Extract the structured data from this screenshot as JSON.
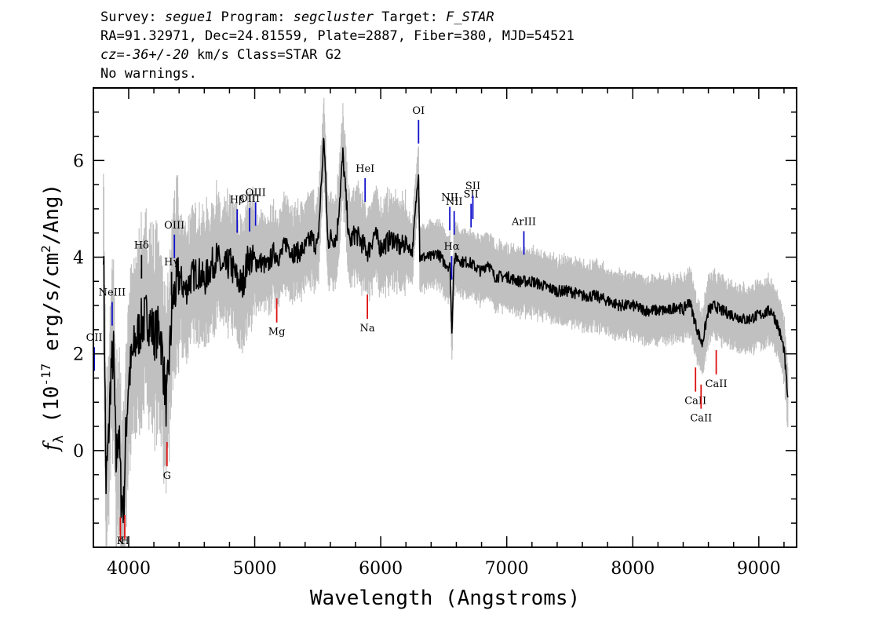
{
  "header": {
    "line1": {
      "survey_label": "Survey: ",
      "survey": "segue1",
      "program_label": " Program: ",
      "program": "segcluster",
      "target_label": " Target: ",
      "target": "F_STAR"
    },
    "line2": "RA=91.32971, Dec=24.81559, Plate=2887, Fiber=380, MJD=54521",
    "line3": {
      "cz_symbol": "cz",
      "eq": "=",
      "cz_value": "-36+/-20",
      "rest": " km/s Class=STAR G2"
    },
    "line4": "No warnings."
  },
  "chart_data": {
    "type": "line",
    "xlabel": "Wavelength (Angstroms)",
    "ylabel": "f_λ (10^-17 erg/s/cm^2/Ang)",
    "xlim": [
      3720,
      9300
    ],
    "ylim": [
      -2.0,
      7.5
    ],
    "x_ticks": [
      4000,
      5000,
      6000,
      7000,
      8000,
      9000
    ],
    "y_ticks": [
      0,
      2,
      4,
      6
    ],
    "grid": false,
    "colors": {
      "flux": "#000000",
      "error_band": "#c0c0c0",
      "emission": "#1010cc",
      "absorption": "#dd1111",
      "neutral": "#000000"
    },
    "series": [
      {
        "x": [
          3800,
          3820,
          3840,
          3860,
          3880,
          3900,
          3920,
          3940,
          3960,
          3980,
          4000,
          4050,
          4100,
          4150,
          4200,
          4250,
          4300,
          4350,
          4400,
          4450,
          4500,
          4550,
          4600,
          4650,
          4700,
          4750,
          4800,
          4850,
          4900,
          4950,
          5000,
          5050,
          5100,
          5150,
          5200,
          5250,
          5300,
          5350,
          5400,
          5450,
          5500,
          5550,
          5580,
          5600,
          5650,
          5700,
          5750,
          5800,
          5850,
          5900,
          5950,
          6000,
          6050,
          6100,
          6150,
          6200,
          6250,
          6300,
          6310,
          6350,
          6400,
          6450,
          6500,
          6550,
          6565,
          6580,
          6600,
          6650,
          6700,
          6750,
          6800,
          6850,
          6900,
          7000,
          7100,
          7200,
          7300,
          7400,
          7500,
          7600,
          7700,
          7800,
          7900,
          8000,
          8100,
          8200,
          8300,
          8350,
          8400,
          8450,
          8500,
          8550,
          8600,
          8650,
          8700,
          8800,
          8900,
          9000,
          9100,
          9150,
          9200,
          9230
        ],
        "y": [
          4.4,
          -0.7,
          0.2,
          1.7,
          2.0,
          -0.3,
          0.5,
          -0.9,
          -1.2,
          0.5,
          1.5,
          2.2,
          2.6,
          2.8,
          2.4,
          2.5,
          0.9,
          3.1,
          3.6,
          3.3,
          3.6,
          3.7,
          3.5,
          3.8,
          4.0,
          3.7,
          3.9,
          3.6,
          3.4,
          4.0,
          3.9,
          3.9,
          3.8,
          4.1,
          4.0,
          4.3,
          4.1,
          4.1,
          4.2,
          4.4,
          4.2,
          6.5,
          4.3,
          4.4,
          4.4,
          6.1,
          4.3,
          4.5,
          4.3,
          4.1,
          4.5,
          4.2,
          4.3,
          4.4,
          4.2,
          4.3,
          4.1,
          5.8,
          4.0,
          4.0,
          4.0,
          4.1,
          3.9,
          3.8,
          2.4,
          3.9,
          4.0,
          3.9,
          3.9,
          3.8,
          3.7,
          3.9,
          3.6,
          3.6,
          3.5,
          3.5,
          3.4,
          3.3,
          3.3,
          3.2,
          3.2,
          3.1,
          3.0,
          3.0,
          2.9,
          2.9,
          2.9,
          3.0,
          2.9,
          3.1,
          2.6,
          2.2,
          2.9,
          3.0,
          2.9,
          2.8,
          2.7,
          2.8,
          2.9,
          2.6,
          2.1,
          1.1
        ]
      }
    ],
    "spectral_lines": [
      {
        "label": "OII",
        "wavelength": 3727,
        "kind": "emission"
      },
      {
        "label": "NeIII",
        "wavelength": 3869,
        "kind": "emission"
      },
      {
        "label": "Hδ",
        "wavelength": 4102,
        "kind": "neutral"
      },
      {
        "label": "Hγ",
        "wavelength": 4340,
        "kind": "neutral"
      },
      {
        "label": "OIII",
        "wavelength": 4363,
        "kind": "emission"
      },
      {
        "label": "Hβ",
        "wavelength": 4861,
        "kind": "emission"
      },
      {
        "label": "OIII",
        "wavelength": 4959,
        "kind": "emission"
      },
      {
        "label": "OIII",
        "wavelength": 5007,
        "kind": "emission"
      },
      {
        "label": "HeI",
        "wavelength": 5876,
        "kind": "emission"
      },
      {
        "label": "OI",
        "wavelength": 6300,
        "kind": "emission"
      },
      {
        "label": "NII",
        "wavelength": 6548,
        "kind": "emission"
      },
      {
        "label": "Hα",
        "wavelength": 6563,
        "kind": "emission"
      },
      {
        "label": "NII",
        "wavelength": 6583,
        "kind": "emission"
      },
      {
        "label": "SII",
        "wavelength": 6717,
        "kind": "emission"
      },
      {
        "label": "SII",
        "wavelength": 6731,
        "kind": "emission"
      },
      {
        "label": "ArIII",
        "wavelength": 7136,
        "kind": "emission"
      },
      {
        "label": "K",
        "wavelength": 3934,
        "kind": "absorption"
      },
      {
        "label": "H",
        "wavelength": 3969,
        "kind": "absorption"
      },
      {
        "label": "G",
        "wavelength": 4304,
        "kind": "absorption"
      },
      {
        "label": "Mg",
        "wavelength": 5175,
        "kind": "absorption"
      },
      {
        "label": "Na",
        "wavelength": 5894,
        "kind": "absorption"
      },
      {
        "label": "CaII",
        "wavelength": 8498,
        "kind": "absorption"
      },
      {
        "label": "CaII",
        "wavelength": 8542,
        "kind": "absorption"
      },
      {
        "label": "CaII",
        "wavelength": 8662,
        "kind": "absorption"
      }
    ]
  }
}
